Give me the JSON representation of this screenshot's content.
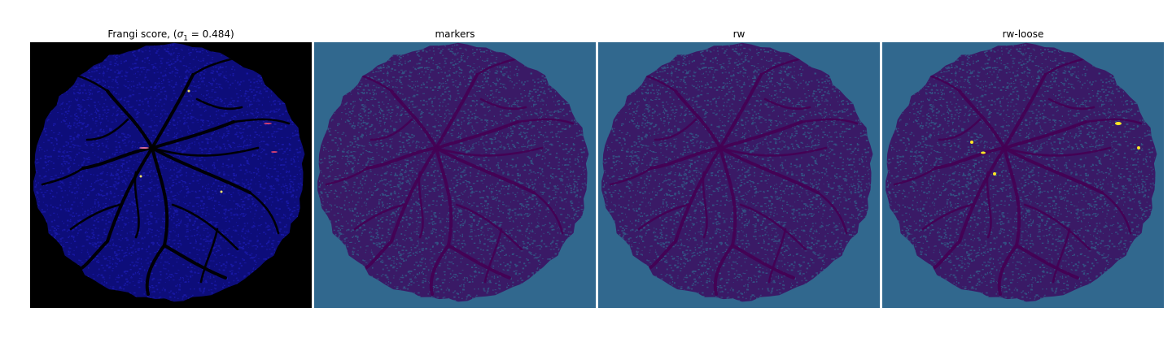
{
  "figure": {
    "panels": [
      {
        "key": "frangi",
        "title_prefix": "Frangi score, (",
        "title_sigma": "σ",
        "title_sub": "1",
        "title_suffix": " = 0.484)",
        "background": "#000000",
        "disk_color": "#0d0d7a",
        "vessel_color": "#000000",
        "speckle_color": "#2323c8"
      },
      {
        "key": "markers",
        "title": "markers",
        "background": "#31688e",
        "disk_color": "#3a1a66",
        "vessel_color": "#440154",
        "speckle_color": "#31688e"
      },
      {
        "key": "rw",
        "title": "rw",
        "background": "#31688e",
        "disk_color": "#3a1a66",
        "vessel_color": "#440154",
        "speckle_color": "#31688e"
      },
      {
        "key": "rw-loose",
        "title": "rw-loose",
        "background": "#31688e",
        "disk_color": "#3a1a66",
        "vessel_color": "#440154",
        "speckle_color": "#31688e",
        "highlight_color": "#fde725"
      }
    ]
  }
}
